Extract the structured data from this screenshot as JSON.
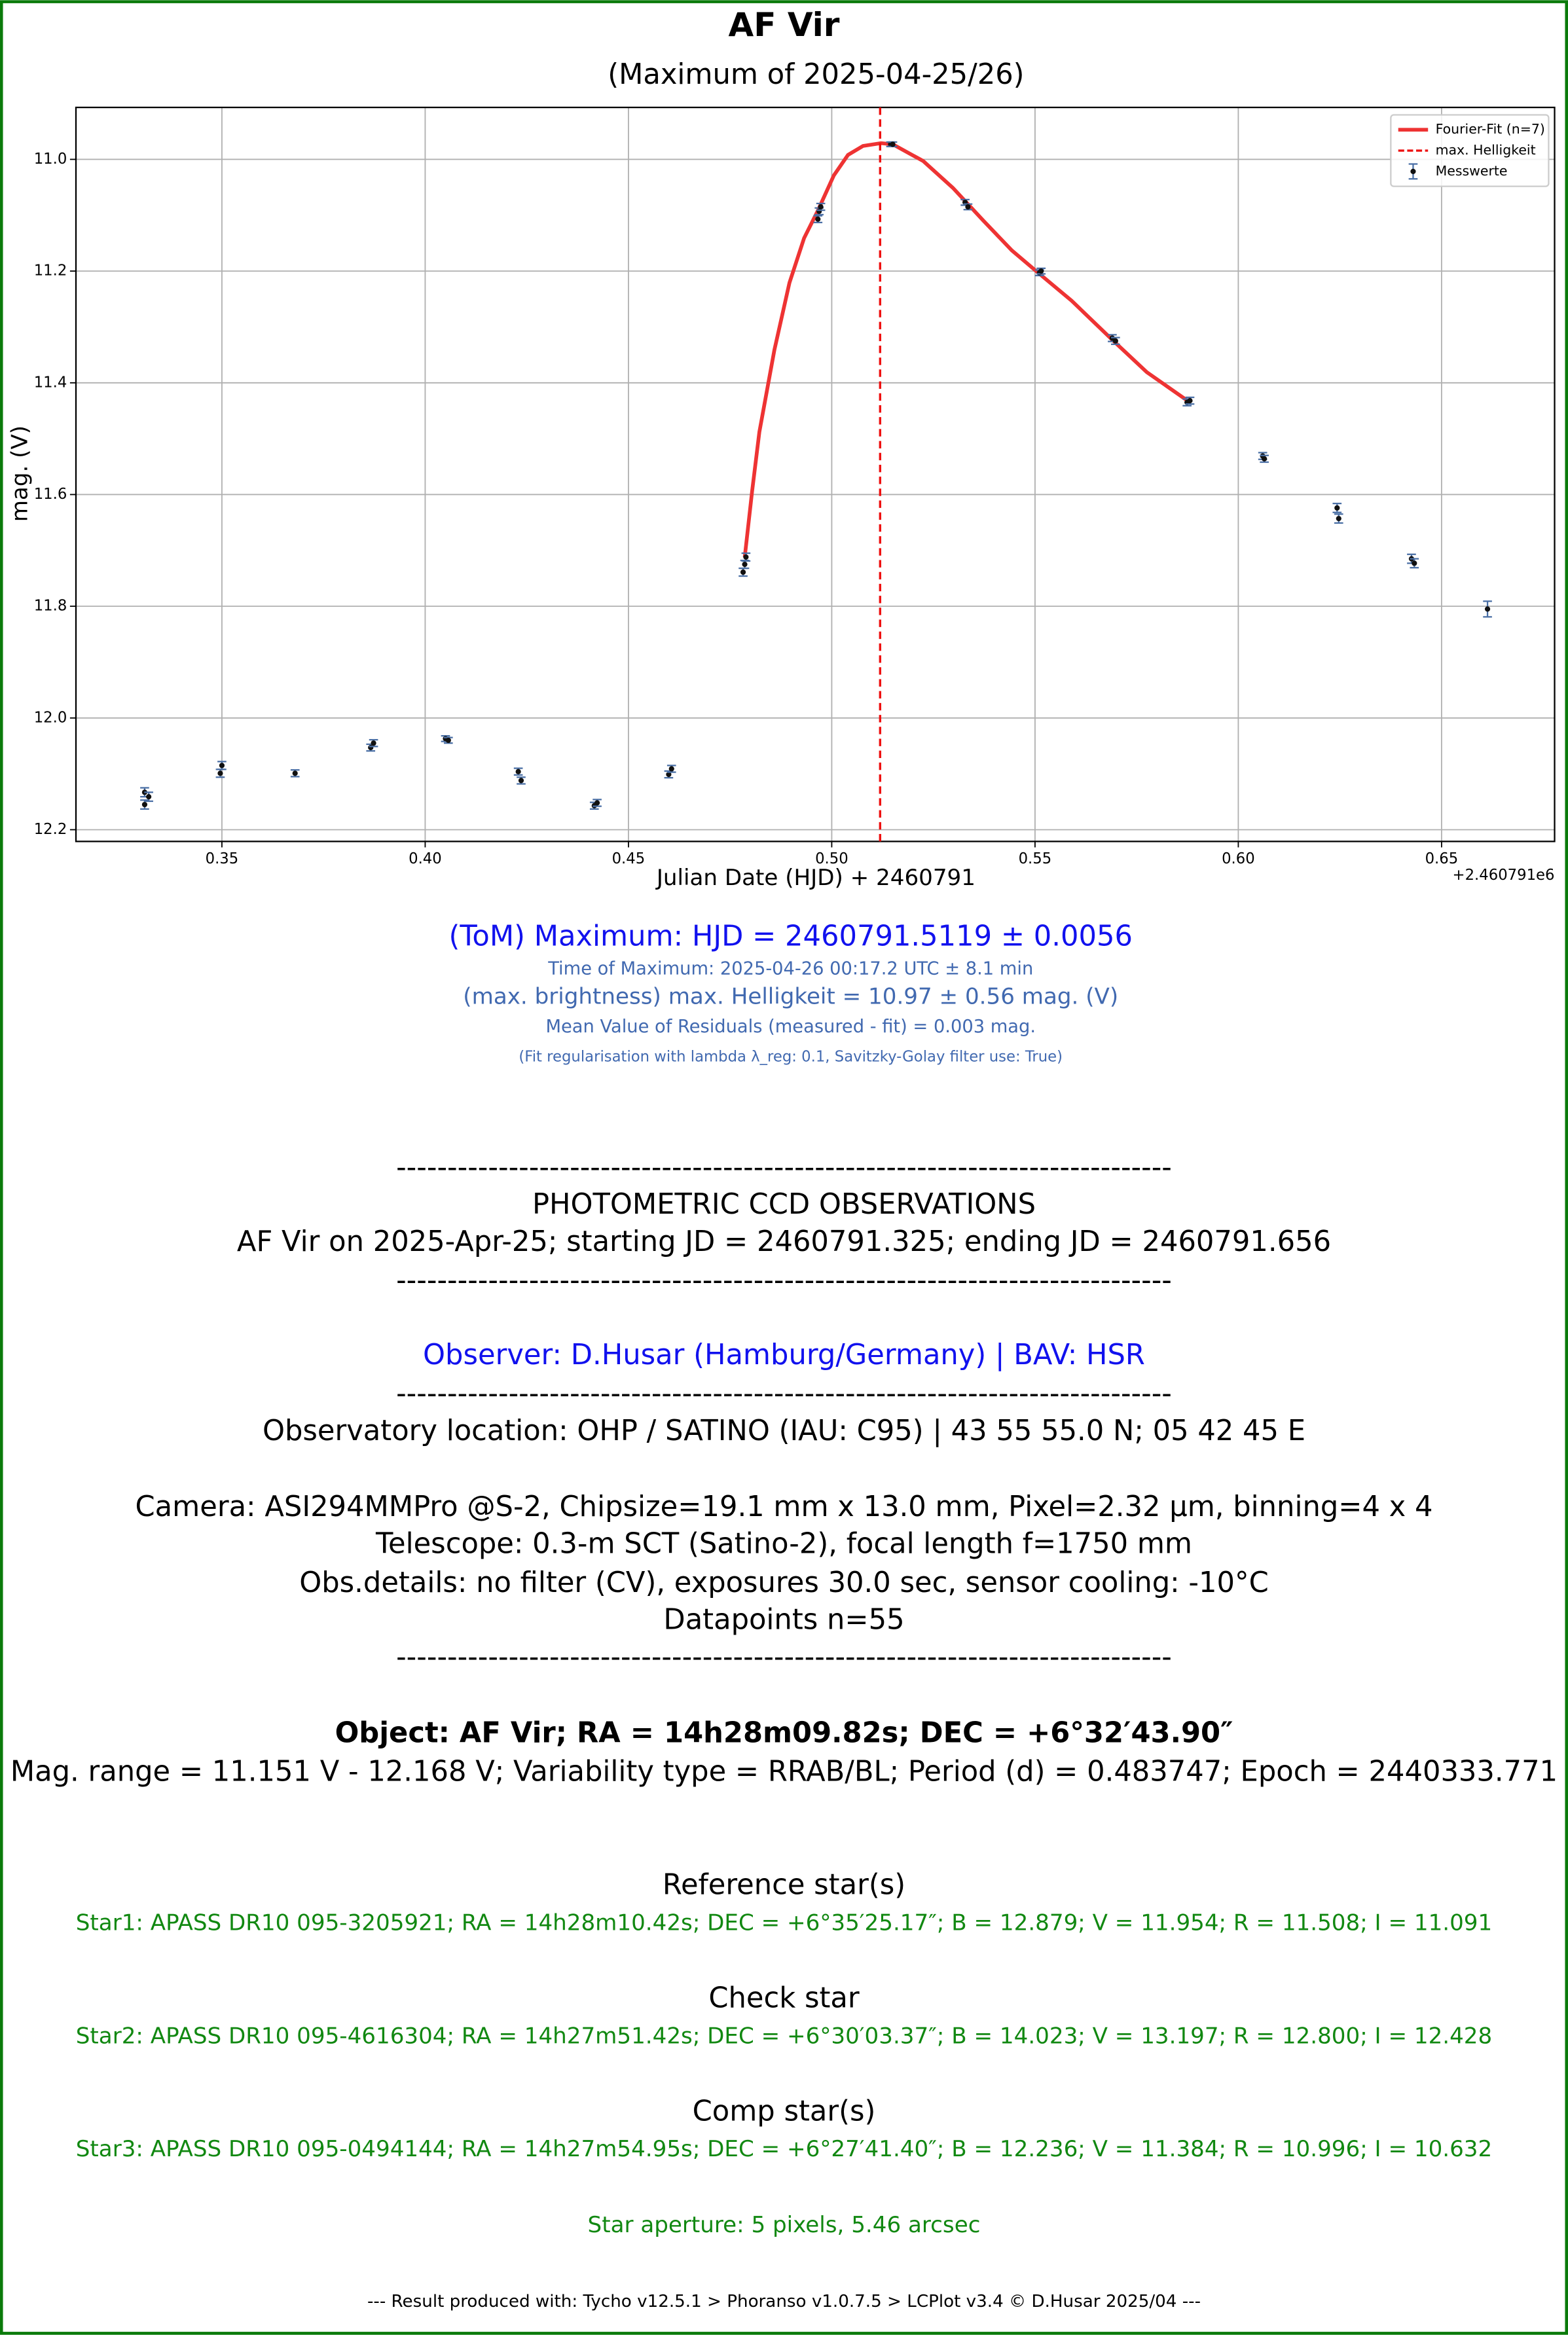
{
  "chart_data": {
    "type": "scatter",
    "title": "AF Vir",
    "subtitle": "(Maximum of 2025-04-25/26)",
    "x_label": "Julian Date (HJD) + 2460791",
    "y_label": "mag. (V)",
    "x_offset_label": "+2.460791e6",
    "xlim": [
      0.3141,
      0.6778
    ],
    "ylim": [
      12.221,
      10.907
    ],
    "xticks": [
      0.35,
      {
        "value": 0.4,
        "label": "0.40"
      },
      0.45,
      {
        "value": 0.5,
        "label": "0.50"
      },
      0.55,
      {
        "value": 0.6,
        "label": "0.60"
      },
      0.65
    ],
    "yticks": [
      {
        "value": 11,
        "label": "11.0"
      },
      11.2,
      11.4,
      11.6,
      11.8,
      {
        "value": 12,
        "label": "12.0"
      },
      12.2
    ],
    "grid": true,
    "legend": "upper right",
    "series": [
      {
        "name": "Fourier-Fit (n=7)",
        "type": "line",
        "color": "#ee3333",
        "x": [
          0.4786,
          0.4804,
          0.4822,
          0.4859,
          0.4896,
          0.4932,
          0.4965,
          0.5005,
          0.504,
          0.5077,
          0.5121,
          0.515,
          0.5225,
          0.5298,
          0.5372,
          0.5443,
          0.5511,
          0.559,
          0.569,
          0.5775,
          0.5881
        ],
        "values": [
          11.712,
          11.595,
          11.488,
          11.341,
          11.221,
          11.141,
          11.093,
          11.029,
          10.992,
          10.976,
          10.971,
          10.973,
          11.003,
          11.051,
          11.109,
          11.163,
          11.205,
          11.253,
          11.323,
          11.381,
          11.435
        ]
      },
      {
        "name": "max. Helligkeit",
        "type": "vline",
        "color": "#ee1111",
        "x": 0.5119
      },
      {
        "name": "Messwerte",
        "type": "errorbar",
        "color": "#111111",
        "error_color": "#4a6fa5",
        "x": [
          0.331,
          0.331,
          0.332,
          0.3496,
          0.35,
          0.368,
          0.3866,
          0.3873,
          0.405,
          0.4057,
          0.4229,
          0.4236,
          0.4416,
          0.4423,
          0.4599,
          0.4606,
          0.4782,
          0.4786,
          0.4789,
          0.4966,
          0.4969,
          0.4973,
          0.5145,
          0.515,
          0.5328,
          0.5335,
          0.5511,
          0.5515,
          0.569,
          0.5698,
          0.5874,
          0.5881,
          0.606,
          0.6064,
          0.6243,
          0.6247,
          0.6426,
          0.6433,
          0.6613
        ],
        "values": [
          12.133,
          12.155,
          12.141,
          12.099,
          12.085,
          12.099,
          12.053,
          12.045,
          12.037,
          12.04,
          12.096,
          12.112,
          12.157,
          12.152,
          12.101,
          12.091,
          11.739,
          11.725,
          11.712,
          11.107,
          11.093,
          11.085,
          10.973,
          10.973,
          11.077,
          11.085,
          11.203,
          11.2,
          11.32,
          11.325,
          11.435,
          11.432,
          11.531,
          11.536,
          11.624,
          11.643,
          11.715,
          11.723,
          11.805
        ],
        "errors": [
          0.008,
          0.008,
          0.008,
          0.007,
          0.007,
          0.006,
          0.006,
          0.006,
          0.005,
          0.005,
          0.006,
          0.006,
          0.006,
          0.006,
          0.006,
          0.006,
          0.007,
          0.007,
          0.007,
          0.006,
          0.006,
          0.006,
          0.004,
          0.004,
          0.005,
          0.005,
          0.005,
          0.005,
          0.006,
          0.006,
          0.006,
          0.006,
          0.006,
          0.006,
          0.008,
          0.008,
          0.008,
          0.008,
          0.014
        ]
      }
    ]
  },
  "results": {
    "maximum": "(ToM) Maximum: HJD = 2460791.5119 ± 0.0056",
    "time_of_maximum": "Time of Maximum:   2025-04-26   00:17.2 UTC ± 8.1 min",
    "max_brightness": "(max. brightness) max. Helligkeit = 10.97 ± 0.56 mag. (V)",
    "residuals": "Mean Value of Residuals (measured - fit) = 0.003 mag.",
    "fit_note": "(Fit regularisation with lambda λ_reg: 0.1, Savitzky-Golay filter use: True)"
  },
  "report": {
    "separator": "----------------------------------------------------------------------------",
    "heading": "PHOTOMETRIC CCD OBSERVATIONS",
    "summary": "AF Vir on 2025-Apr-25; starting JD = 2460791.325; ending JD = 2460791.656",
    "observer": "Observer: D.Husar (Hamburg/Germany) | BAV: HSR",
    "location": "Observatory location: OHP / SATINO (IAU: C95) | 43 55 55.0 N; 05 42 45 E",
    "camera": "Camera: ASI294MMPro @S-2, Chipsize=19.1 mm x 13.0 mm, Pixel=2.32 µm, binning=4 x 4",
    "telescope": "Telescope: 0.3-m SCT (Satino-2), focal length f=1750 mm",
    "obs_details": "Obs.details: no filter (CV), exposures 30.0 sec, sensor cooling: -10°C",
    "datapoints": "Datapoints n=55",
    "object": "Object: AF Vir; RA = 14h28m09.82s; DEC = +6°32′43.90″",
    "object_info": "Mag. range = 11.151 V - 12.168 V; Variability type = RRAB/BL; Period (d) = 0.483747; Epoch = 2440333.771",
    "reference_title": "Reference star(s)",
    "reference_star": "Star1: APASS DR10 095-3205921; RA = 14h28m10.42s; DEC = +6°35′25.17″; B = 12.879; V = 11.954; R = 11.508; I = 11.091",
    "check_title": "Check star",
    "check_star": "Star2: APASS DR10 095-4616304; RA = 14h27m51.42s; DEC = +6°30′03.37″; B = 14.023; V = 13.197; R = 12.800; I = 12.428",
    "comp_title": "Comp star(s)",
    "comp_star": "Star3: APASS DR10 095-0494144; RA = 14h27m54.95s; DEC = +6°27′41.40″; B = 12.236; V = 11.384; R = 10.996; I = 10.632",
    "aperture": "Star aperture: 5 pixels, 5.46 arcsec",
    "footer": "---  Result produced with: Tycho v12.5.1 > Phoranso v1.0.7.5 > LCPlot v3.4 © D.Husar 2025/04  ---"
  }
}
